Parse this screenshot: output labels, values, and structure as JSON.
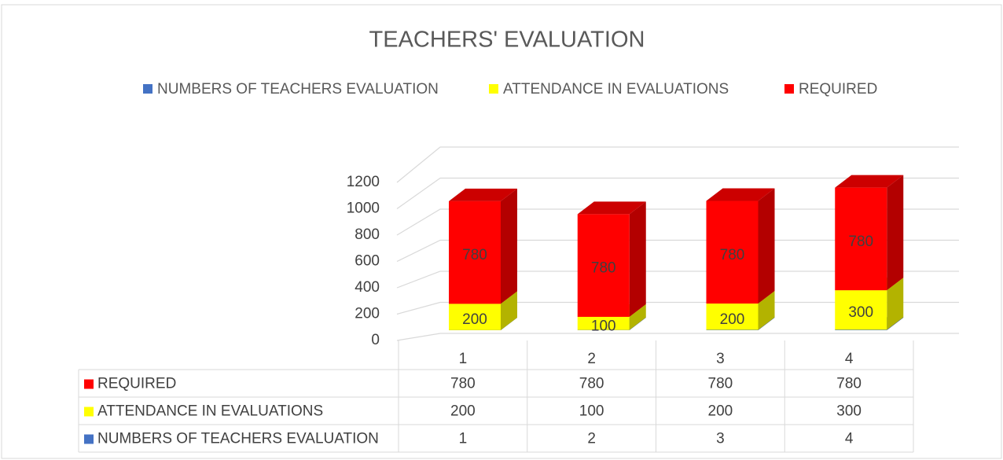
{
  "chart_data": {
    "type": "bar3d_stacked",
    "title": "TEACHERS' EVALUATION",
    "categories": [
      "1",
      "2",
      "3",
      "4"
    ],
    "series": [
      {
        "name": "NUMBERS OF TEACHERS EVALUATION",
        "color": "#4472c4",
        "values": [
          1,
          2,
          3,
          4
        ]
      },
      {
        "name": "ATTENDANCE IN EVALUATIONS",
        "color": "#ffff00",
        "values": [
          200,
          100,
          200,
          300
        ]
      },
      {
        "name": "REQUIRED",
        "color": "#ff0000",
        "values": [
          780,
          780,
          780,
          780
        ]
      }
    ],
    "ylim": [
      0,
      1200
    ],
    "yticks": [
      0,
      200,
      400,
      600,
      800,
      1000,
      1200
    ],
    "grid": true,
    "legend": "top",
    "data_table": true
  }
}
